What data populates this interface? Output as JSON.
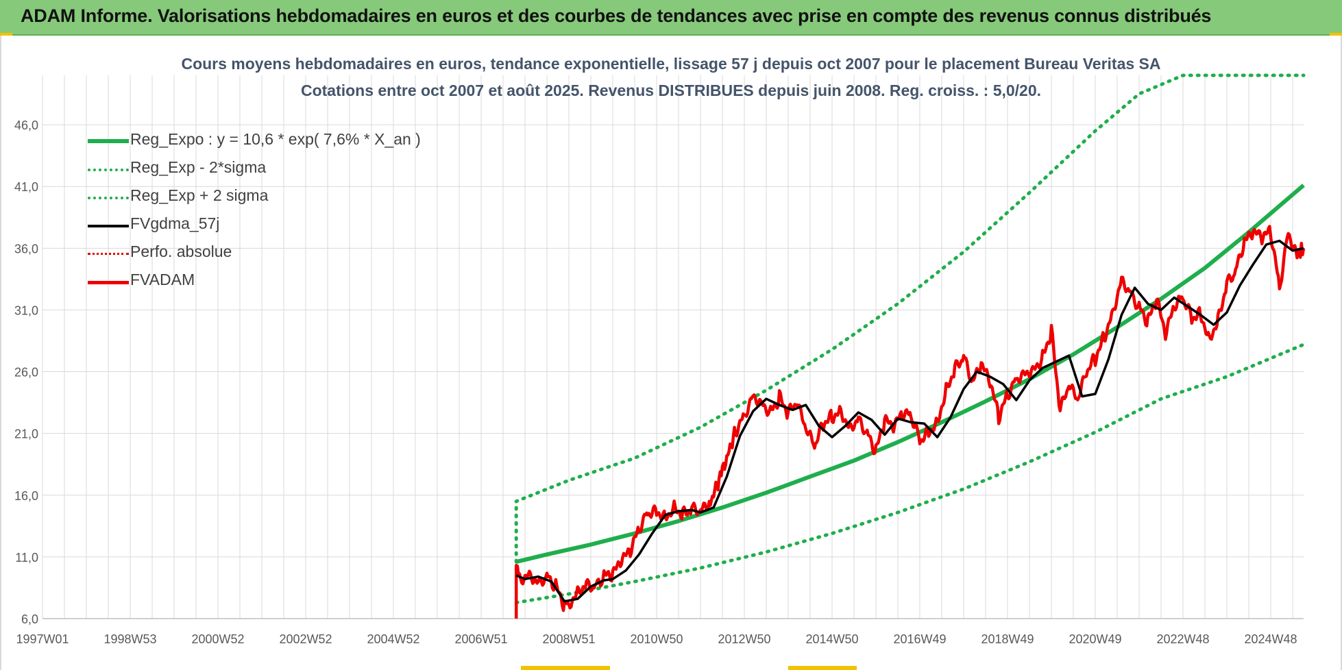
{
  "header": {
    "title": "ADAM Informe. Valorisations hebdomadaires en euros et des courbes de tendances avec prise en compte des revenus connus distribués"
  },
  "colors": {
    "header_bg": "#86c97a",
    "regression": "#1fae4c",
    "band": "#1fae4c",
    "fv_gdma": "#000000",
    "perfo": "#e00000",
    "fvadam": "#ee0000",
    "grid": "#d9d9d9",
    "axis_text": "#595959"
  },
  "chart_data": {
    "type": "line",
    "title": "Cours moyens hebdomadaires en euros, tendance exponentielle, lissage 57 j depuis oct 2007 pour le placement Bureau Veritas SA",
    "subtitle": "Cotations entre oct 2007 et août 2025. Revenus DISTRIBUES depuis juin 2008. Reg. croiss. : 5,0/20.",
    "xlabel": "",
    "ylabel": "",
    "x_tick_labels": [
      "1997W01",
      "1998W53",
      "2000W52",
      "2002W52",
      "2004W52",
      "2006W51",
      "2008W51",
      "2010W50",
      "2012W50",
      "2014W50",
      "2016W49",
      "2018W49",
      "2020W49",
      "2022W48",
      "2024W48"
    ],
    "x_range": [
      1997.0,
      2025.75
    ],
    "y_tick_labels": [
      "6,0",
      "11,0",
      "16,0",
      "21,0",
      "26,0",
      "31,0",
      "36,0",
      "41,0",
      "46,0"
    ],
    "y_ticks": [
      6,
      11,
      16,
      21,
      26,
      31,
      36,
      41,
      46
    ],
    "ylim": [
      6,
      50
    ],
    "grid": true,
    "legend_position": "top-left",
    "series": [
      {
        "name": "Reg_Expo : y = 10,6 * exp( 7,6% *  X_an )",
        "style": "solid-thick",
        "color": "#1fae4c",
        "x": [
          2007.8,
          2008.5,
          2009.5,
          2010.5,
          2011.5,
          2012.5,
          2013.5,
          2014.5,
          2015.5,
          2016.5,
          2017.5,
          2018.5,
          2019.5,
          2020.5,
          2021.5,
          2022.5,
          2023.5,
          2024.5,
          2025.75
        ],
        "y": [
          10.6,
          11.2,
          12.0,
          12.9,
          13.9,
          15.0,
          16.2,
          17.5,
          18.8,
          20.3,
          21.9,
          23.6,
          25.4,
          27.4,
          29.6,
          31.9,
          34.4,
          37.3,
          41.1
        ]
      },
      {
        "name": "Reg_Exp - 2*sigma",
        "style": "dotted",
        "color": "#1fae4c",
        "x": [
          2007.8,
          2009.0,
          2010.5,
          2012.0,
          2013.5,
          2015.0,
          2016.5,
          2018.0,
          2019.5,
          2021.0,
          2022.5,
          2024.0,
          2025.75
        ],
        "y": [
          7.3,
          8.0,
          9.0,
          10.1,
          11.4,
          12.9,
          14.6,
          16.5,
          18.7,
          21.1,
          23.8,
          25.6,
          28.2
        ]
      },
      {
        "name": "Reg_Exp + 2 sigma",
        "style": "dotted",
        "color": "#1fae4c",
        "x": [
          2007.8,
          2007.8,
          2009.0,
          2010.5,
          2012.0,
          2013.5,
          2015.0,
          2016.5,
          2018.0,
          2019.5,
          2021.0,
          2022.0,
          2023.0,
          2025.75
        ],
        "y": [
          10.6,
          15.5,
          17.2,
          19.0,
          21.5,
          24.5,
          27.8,
          31.5,
          35.7,
          40.5,
          45.5,
          48.5,
          50.0,
          50.0
        ]
      },
      {
        "name": "FVgdma_57j",
        "style": "solid",
        "color": "#000000",
        "x": [
          2007.8,
          2008.0,
          2008.3,
          2008.6,
          2008.9,
          2009.2,
          2009.5,
          2009.8,
          2010.0,
          2010.3,
          2010.6,
          2010.9,
          2011.2,
          2011.5,
          2011.8,
          2012.0,
          2012.3,
          2012.6,
          2012.9,
          2013.2,
          2013.5,
          2013.8,
          2014.1,
          2014.4,
          2014.7,
          2015.0,
          2015.3,
          2015.6,
          2015.9,
          2016.2,
          2016.5,
          2016.8,
          2017.1,
          2017.4,
          2017.7,
          2018.0,
          2018.3,
          2018.6,
          2018.9,
          2019.2,
          2019.5,
          2019.8,
          2020.1,
          2020.4,
          2020.7,
          2021.0,
          2021.3,
          2021.6,
          2021.9,
          2022.2,
          2022.5,
          2022.8,
          2023.1,
          2023.4,
          2023.7,
          2024.0,
          2024.3,
          2024.6,
          2024.9,
          2025.2,
          2025.5,
          2025.75
        ],
        "y": [
          9.5,
          9.2,
          9.4,
          9.0,
          7.4,
          7.6,
          8.6,
          9.1,
          9.2,
          9.9,
          11.2,
          12.9,
          14.4,
          14.7,
          14.8,
          14.6,
          15.0,
          17.5,
          20.8,
          22.8,
          23.8,
          23.3,
          22.9,
          23.3,
          21.6,
          20.7,
          21.6,
          22.7,
          22.1,
          20.9,
          22.2,
          21.9,
          21.8,
          20.7,
          22.3,
          24.6,
          26.0,
          25.6,
          25.0,
          23.7,
          25.3,
          26.3,
          26.8,
          27.3,
          24.0,
          24.2,
          27.0,
          30.6,
          32.8,
          31.5,
          31.0,
          32.0,
          31.3,
          30.6,
          29.8,
          30.8,
          33.0,
          34.7,
          36.3,
          36.6,
          35.8,
          36.0
        ]
      },
      {
        "name": "Perfo. absolue",
        "style": "dotted",
        "color": "#e00000",
        "x": [],
        "y": []
      },
      {
        "name": "FVADAM",
        "style": "solid-thick",
        "color": "#ee0000",
        "x": [
          2007.8,
          2007.8,
          2007.9,
          2008.1,
          2008.3,
          2008.5,
          2008.7,
          2008.9,
          2009.0,
          2009.2,
          2009.4,
          2009.6,
          2009.8,
          2010.0,
          2010.2,
          2010.4,
          2010.6,
          2010.8,
          2011.0,
          2011.2,
          2011.4,
          2011.6,
          2011.8,
          2012.0,
          2012.2,
          2012.5,
          2012.8,
          2013.0,
          2013.2,
          2013.4,
          2013.6,
          2013.8,
          2014.0,
          2014.2,
          2014.4,
          2014.6,
          2014.8,
          2015.0,
          2015.2,
          2015.4,
          2015.6,
          2015.8,
          2016.0,
          2016.2,
          2016.4,
          2016.6,
          2016.8,
          2017.0,
          2017.2,
          2017.4,
          2017.6,
          2017.8,
          2018.0,
          2018.2,
          2018.4,
          2018.6,
          2018.8,
          2019.0,
          2019.2,
          2019.4,
          2019.6,
          2019.8,
          2020.0,
          2020.2,
          2020.4,
          2020.6,
          2020.8,
          2021.0,
          2021.2,
          2021.4,
          2021.6,
          2021.8,
          2022.0,
          2022.2,
          2022.4,
          2022.6,
          2022.8,
          2023.0,
          2023.2,
          2023.4,
          2023.6,
          2023.8,
          2024.0,
          2024.2,
          2024.4,
          2024.6,
          2024.8,
          2025.0,
          2025.2,
          2025.4,
          2025.6,
          2025.75
        ],
        "y": [
          6.0,
          10.0,
          9.3,
          9.7,
          9.0,
          9.5,
          8.6,
          7.0,
          7.2,
          8.3,
          8.9,
          8.6,
          9.4,
          9.5,
          10.6,
          11.4,
          13.2,
          14.6,
          14.8,
          14.3,
          15.1,
          14.5,
          14.9,
          14.6,
          15.2,
          17.9,
          21.2,
          22.5,
          24.2,
          23.5,
          22.8,
          23.9,
          22.6,
          23.4,
          21.3,
          19.9,
          21.8,
          22.4,
          22.9,
          21.5,
          22.3,
          21.0,
          19.5,
          22.0,
          21.4,
          22.5,
          22.4,
          20.5,
          21.2,
          22.0,
          24.6,
          26.3,
          27.2,
          25.0,
          26.5,
          25.1,
          22.3,
          24.1,
          25.5,
          26.0,
          26.3,
          27.2,
          29.3,
          22.8,
          24.8,
          23.6,
          25.9,
          27.1,
          28.8,
          30.9,
          33.6,
          32.5,
          31.2,
          30.0,
          31.8,
          28.9,
          31.2,
          32.0,
          30.4,
          30.8,
          28.7,
          30.3,
          33.2,
          34.1,
          36.4,
          37.2,
          36.8,
          37.3,
          32.8,
          37.4,
          35.5,
          36.0
        ]
      }
    ]
  }
}
